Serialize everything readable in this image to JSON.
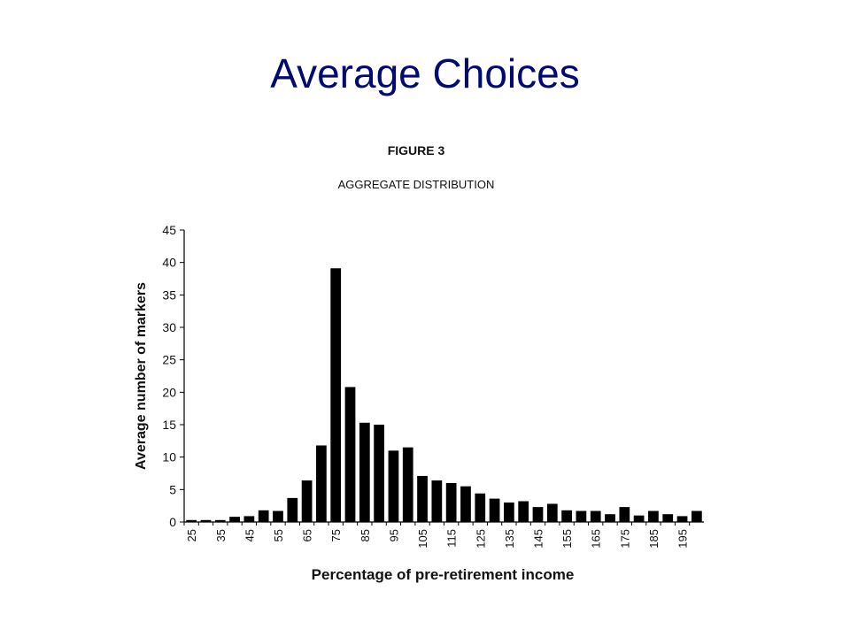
{
  "slide": {
    "title": "Average Choices"
  },
  "chart_data": {
    "type": "bar",
    "figure_label": "FIGURE 3",
    "title": "AGGREGATE DISTRIBUTION",
    "xlabel": "Percentage of pre-retirement income",
    "ylabel": "Average number of markers",
    "ylim": [
      0,
      45
    ],
    "yticks": [
      0,
      5,
      10,
      15,
      20,
      25,
      30,
      35,
      40,
      45
    ],
    "grid": false,
    "bar_color": "#000000",
    "categories": [
      25,
      30,
      35,
      40,
      45,
      50,
      55,
      60,
      65,
      70,
      75,
      80,
      85,
      90,
      95,
      100,
      105,
      110,
      115,
      120,
      125,
      130,
      135,
      140,
      145,
      150,
      155,
      160,
      165,
      170,
      175,
      180,
      185,
      190,
      195,
      200
    ],
    "xtick_labels": [
      "25",
      "35",
      "45",
      "55",
      "65",
      "75",
      "85",
      "95",
      "105",
      "115",
      "125",
      "135",
      "145",
      "155",
      "165",
      "175",
      "185",
      "195"
    ],
    "values": [
      0.3,
      0.3,
      0.3,
      0.8,
      0.9,
      1.8,
      1.7,
      3.7,
      6.4,
      11.8,
      39.1,
      20.8,
      15.3,
      15.0,
      11.0,
      11.5,
      7.1,
      6.4,
      6.0,
      5.5,
      4.4,
      3.6,
      3.0,
      3.2,
      2.3,
      2.8,
      1.8,
      1.7,
      1.7,
      1.2,
      2.3,
      1.0,
      1.7,
      1.2,
      0.9,
      1.7
    ]
  }
}
